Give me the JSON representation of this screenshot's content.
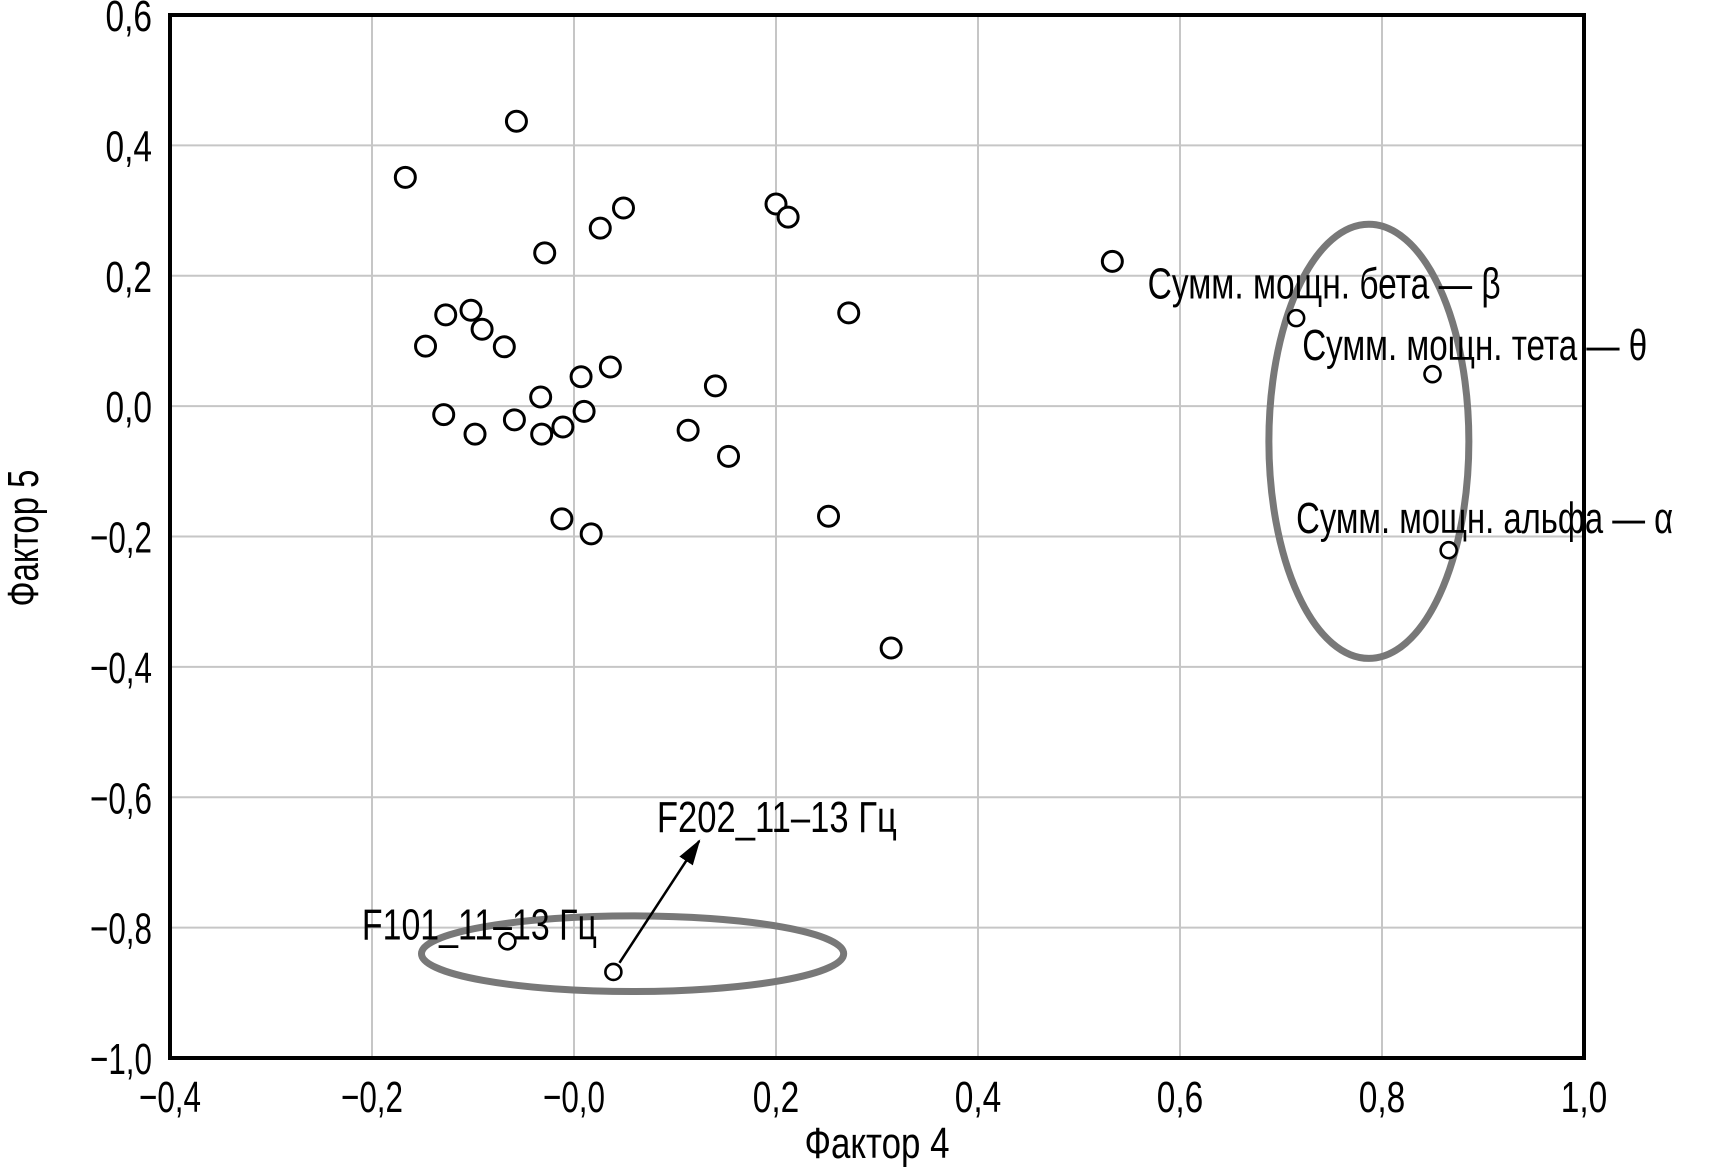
{
  "figure": {
    "kind": "factor-loadings-scatter"
  },
  "chart_data": {
    "type": "scatter",
    "title": "",
    "xlabel": "Фактор 4",
    "ylabel": "Фактор 5",
    "xlim": [
      -0.4,
      1.0
    ],
    "ylim": [
      -1.0,
      0.6
    ],
    "grid": true,
    "legend": "none",
    "x_ticks": [
      {
        "v": -0.4,
        "label": "−0,4"
      },
      {
        "v": -0.2,
        "label": "−0,2"
      },
      {
        "v": 0.0,
        "label": "−0,0"
      },
      {
        "v": 0.2,
        "label": "0,2"
      },
      {
        "v": 0.4,
        "label": "0,4"
      },
      {
        "v": 0.6,
        "label": "0,6"
      },
      {
        "v": 0.8,
        "label": "0,8"
      },
      {
        "v": 1.0,
        "label": "1,0"
      }
    ],
    "y_ticks": [
      {
        "v": 0.6,
        "label": "0,6"
      },
      {
        "v": 0.4,
        "label": "0,4"
      },
      {
        "v": 0.2,
        "label": "0,2"
      },
      {
        "v": 0.0,
        "label": "0,0"
      },
      {
        "v": -0.2,
        "label": "−0,2"
      },
      {
        "v": -0.4,
        "label": "−0,4"
      },
      {
        "v": -0.6,
        "label": "−0,6"
      },
      {
        "v": -0.8,
        "label": "−0,8"
      },
      {
        "v": -1.0,
        "label": "−1,0"
      }
    ],
    "points": [
      [
        -0.057,
        0.437
      ],
      [
        -0.167,
        0.351
      ],
      [
        0.049,
        0.304
      ],
      [
        0.026,
        0.273
      ],
      [
        0.2,
        0.31
      ],
      [
        0.212,
        0.29
      ],
      [
        -0.029,
        0.235
      ],
      [
        -0.127,
        0.14
      ],
      [
        -0.102,
        0.147
      ],
      [
        -0.091,
        0.118
      ],
      [
        -0.147,
        0.092
      ],
      [
        -0.069,
        0.091
      ],
      [
        0.007,
        0.045
      ],
      [
        0.036,
        0.06
      ],
      [
        0.14,
        0.031
      ],
      [
        -0.033,
        0.014
      ],
      [
        -0.129,
        -0.013
      ],
      [
        0.01,
        -0.008
      ],
      [
        -0.059,
        -0.021
      ],
      [
        -0.098,
        -0.043
      ],
      [
        -0.032,
        -0.043
      ],
      [
        -0.011,
        -0.032
      ],
      [
        0.113,
        -0.037
      ],
      [
        0.153,
        -0.077
      ],
      [
        -0.012,
        -0.173
      ],
      [
        0.017,
        -0.196
      ],
      [
        0.272,
        0.143
      ],
      [
        0.533,
        0.222
      ],
      [
        0.252,
        -0.169
      ],
      [
        0.314,
        -0.371
      ]
    ],
    "labeled_points": [
      {
        "name": "sum-power-beta",
        "x": 0.715,
        "y": 0.135,
        "label": "Сумм. мощн. бета — β",
        "label_x": 0.568,
        "label_y": 0.19,
        "label_width": 353
      },
      {
        "name": "sum-power-theta",
        "x": 0.85,
        "y": 0.049,
        "label": "Сумм. мощн. тета — θ",
        "label_x": 0.721,
        "label_y": 0.095,
        "label_width": 345
      },
      {
        "name": "sum-power-alpha",
        "x": 0.866,
        "y": -0.221,
        "label": "Сумм. мощн. альфа — α",
        "label_x": 0.715,
        "label_y": -0.17,
        "label_width": 377
      },
      {
        "name": "f101-11-13hz",
        "x": -0.066,
        "y": -0.821,
        "label": "F101_11–13 Гц",
        "label_x": -0.21,
        "label_y": -0.794,
        "label_width": 235
      },
      {
        "name": "f202-11-13hz",
        "x": 0.039,
        "y": -0.868,
        "label": "F202_11–13 Гц",
        "label_x": 0.082,
        "label_y": -0.629,
        "label_width": 240
      }
    ],
    "ellipses": [
      {
        "name": "bottom-group-ellipse",
        "cx": 0.058,
        "cy": -0.84,
        "rx": 0.209,
        "ry": 0.058
      },
      {
        "name": "right-group-ellipse",
        "cx": 0.787,
        "cy": -0.054,
        "rx": 0.099,
        "ry": 0.333
      }
    ],
    "arrow": {
      "x1": 0.045,
      "y1": -0.854,
      "x2": 0.124,
      "y2": -0.667
    },
    "colors": {
      "point_stroke": "#000000",
      "grid": "#c6c6c6",
      "frame": "#000000",
      "ellipse": "#787878",
      "text": "#000000"
    }
  }
}
